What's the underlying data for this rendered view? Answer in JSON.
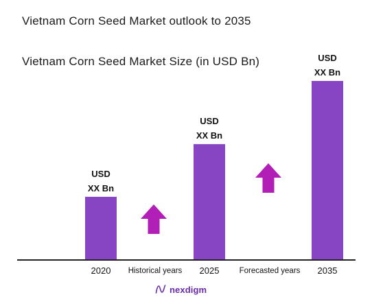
{
  "page": {
    "title": "Vietnam Corn Seed Market outlook to 2035",
    "logo_text": "nexdigm"
  },
  "colors": {
    "bar": "#8745c4",
    "arrow": "#b21fb6",
    "axis": "#222222",
    "logo": "#6a2ca8"
  },
  "annotations": {
    "historical": "Historical years",
    "forecasted": "Forecasted years"
  },
  "chart_data": {
    "type": "bar",
    "title": "Vietnam Corn Seed Market Size (in USD Bn)",
    "categories": [
      "2020",
      "2025",
      "2035"
    ],
    "values": [
      3,
      5.5,
      8.5
    ],
    "value_note": "relative heights only; no value axis printed",
    "data_labels": [
      [
        "USD",
        "XX Bn"
      ],
      [
        "USD",
        "XX Bn"
      ],
      [
        "USD",
        "XX Bn"
      ]
    ],
    "ylim": [
      0,
      8.5
    ],
    "grid": false,
    "legend": "none",
    "xlabel": "",
    "ylabel": ""
  }
}
